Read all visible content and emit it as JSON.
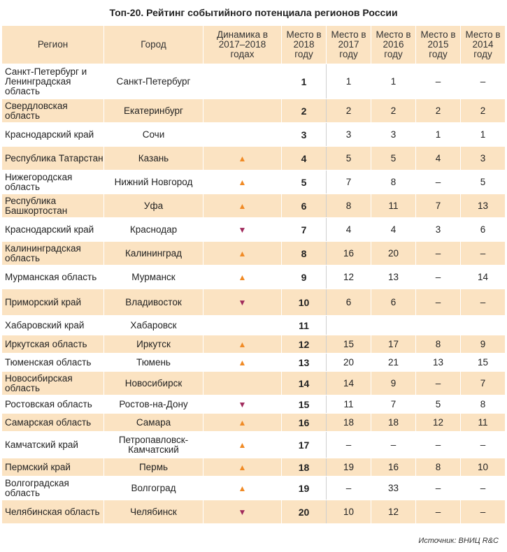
{
  "title": "Топ-20. Рейтинг событийного потенциала регионов России",
  "headers": {
    "region": "Регион",
    "city": "Город",
    "dynamics": "Динамика в 2017–2018 годах",
    "y2018": "Место в 2018 году",
    "y2017": "Место в 2017 году",
    "y2016": "Место в 2016 году",
    "y2015": "Место в 2015 году",
    "y2014": "Место в 2014 году"
  },
  "arrows": {
    "up": "▲",
    "down": "▼"
  },
  "rows": [
    {
      "region": "Санкт-Петербург и Ленинградская область",
      "city": "Санкт-Петербург",
      "dyn": "",
      "y2018": "1",
      "y2017": "1",
      "y2016": "1",
      "y2015": "–",
      "y2014": "–"
    },
    {
      "region": "Свердловская область",
      "city": "Екатеринбург",
      "dyn": "",
      "y2018": "2",
      "y2017": "2",
      "y2016": "2",
      "y2015": "2",
      "y2014": "2"
    },
    {
      "region": "Краснодарский край",
      "city": "Сочи",
      "dyn": "",
      "y2018": "3",
      "y2017": "3",
      "y2016": "3",
      "y2015": "1",
      "y2014": "1"
    },
    {
      "region": "Республика Татарстан",
      "city": "Казань",
      "dyn": "up",
      "y2018": "4",
      "y2017": "5",
      "y2016": "5",
      "y2015": "4",
      "y2014": "3"
    },
    {
      "region": "Нижегородская область",
      "city": "Нижний Новгород",
      "dyn": "up",
      "y2018": "5",
      "y2017": "7",
      "y2016": "8",
      "y2015": "–",
      "y2014": "5"
    },
    {
      "region": "Республика Башкортостан",
      "city": "Уфа",
      "dyn": "up",
      "y2018": "6",
      "y2017": "8",
      "y2016": "11",
      "y2015": "7",
      "y2014": "13"
    },
    {
      "region": "Краснодарский край",
      "city": "Краснодар",
      "dyn": "down",
      "y2018": "7",
      "y2017": "4",
      "y2016": "4",
      "y2015": "3",
      "y2014": "6"
    },
    {
      "region": "Калининградская область",
      "city": "Калининград",
      "dyn": "up",
      "y2018": "8",
      "y2017": "16",
      "y2016": "20",
      "y2015": "–",
      "y2014": "–"
    },
    {
      "region": "Мурманская область",
      "city": "Мурманск",
      "dyn": "up",
      "y2018": "9",
      "y2017": "12",
      "y2016": "13",
      "y2015": "–",
      "y2014": "14"
    },
    {
      "region": "Приморский край",
      "city": "Владивосток",
      "dyn": "down",
      "y2018": "10",
      "y2017": "6",
      "y2016": "6",
      "y2015": "–",
      "y2014": "–"
    },
    {
      "region": "Хабаровский край",
      "city": "Хабаровск",
      "dyn": "",
      "y2018": "11",
      "y2017": "",
      "y2016": "",
      "y2015": "",
      "y2014": ""
    },
    {
      "region": "Иркутская область",
      "city": "Иркутск",
      "dyn": "up",
      "y2018": "12",
      "y2017": "15",
      "y2016": "17",
      "y2015": "8",
      "y2014": "9"
    },
    {
      "region": "Тюменская область",
      "city": "Тюмень",
      "dyn": "up",
      "y2018": "13",
      "y2017": "20",
      "y2016": "21",
      "y2015": "13",
      "y2014": "15"
    },
    {
      "region": "Новосибирская область",
      "city": "Новосибирск",
      "dyn": "",
      "y2018": "14",
      "y2017": "14",
      "y2016": "9",
      "y2015": "–",
      "y2014": "7"
    },
    {
      "region": "Ростовская область",
      "city": "Ростов-на-Дону",
      "dyn": "down",
      "y2018": "15",
      "y2017": "11",
      "y2016": "7",
      "y2015": "5",
      "y2014": "8"
    },
    {
      "region": "Самарская область",
      "city": "Самара",
      "dyn": "up",
      "y2018": "16",
      "y2017": "18",
      "y2016": "18",
      "y2015": "12",
      "y2014": "11"
    },
    {
      "region": "Камчатский край",
      "city": "Петропавловск-Камчатский",
      "dyn": "up",
      "y2018": "17",
      "y2017": "–",
      "y2016": "–",
      "y2015": "–",
      "y2014": "–"
    },
    {
      "region": "Пермский край",
      "city": "Пермь",
      "dyn": "up",
      "y2018": "18",
      "y2017": "19",
      "y2016": "16",
      "y2015": "8",
      "y2014": "10"
    },
    {
      "region": "Волгоградская область",
      "city": "Волгоград",
      "dyn": "up",
      "y2018": "19",
      "y2017": "–",
      "y2016": "33",
      "y2015": "–",
      "y2014": "–"
    },
    {
      "region": "Челябинская область",
      "city": "Челябинск",
      "dyn": "down",
      "y2018": "20",
      "y2017": "10",
      "y2016": "12",
      "y2015": "–",
      "y2014": "–"
    }
  ],
  "source": "Источник: ВНИЦ R&C"
}
